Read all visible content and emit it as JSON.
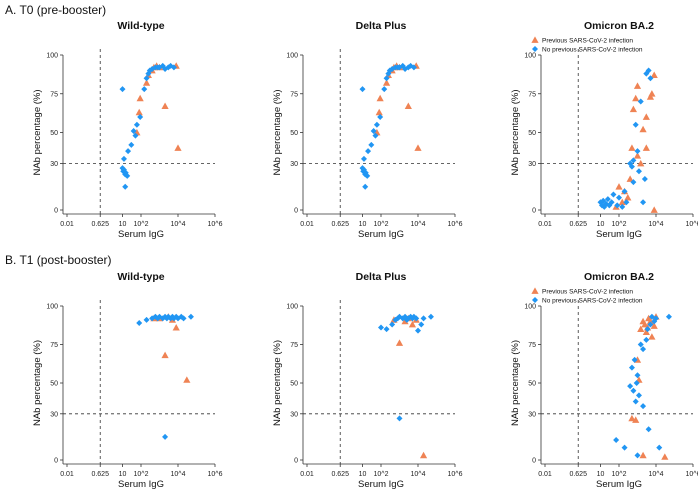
{
  "colors": {
    "previous": "#EF8354",
    "no_previous": "#2196F3"
  },
  "sections": [
    "A. T0 (pre-booster)",
    "B. T1 (post-booster)"
  ],
  "chart_data": [
    {
      "type": "scatter",
      "section": "A. T0 (pre-booster)",
      "title": "Wild-type",
      "xlabel": "Serum IgG",
      "ylabel": "NAb percentage (%)",
      "x_scale": "log10",
      "xlim": [
        0.01,
        1000000
      ],
      "ylim": [
        0,
        100
      ],
      "xticks": [
        "0.01",
        "0.625",
        "10",
        "10^2",
        "10^4",
        "10^6"
      ],
      "yticks": [
        "0",
        "30",
        "50",
        "75",
        "100"
      ],
      "ref_x": 0.625,
      "ref_y": 30,
      "legend": null,
      "series": [
        {
          "name": "Previous SARS-CoV-2 infection",
          "marker": "triangle",
          "points": [
            [
              60,
              50
            ],
            [
              80,
              63
            ],
            [
              90,
              72
            ],
            [
              200,
              82
            ],
            [
              250,
              87
            ],
            [
              400,
              90
            ],
            [
              500,
              92
            ],
            [
              700,
              93
            ],
            [
              1000,
              92
            ],
            [
              2000,
              67
            ],
            [
              8000,
              93
            ],
            [
              10000,
              40
            ]
          ]
        },
        {
          "name": "No previous SARS-CoV-2 infection",
          "marker": "diamond",
          "points": [
            [
              10,
              78
            ],
            [
              10,
              27
            ],
            [
              11,
              25
            ],
            [
              12,
              26
            ],
            [
              14,
              23
            ],
            [
              15,
              24
            ],
            [
              18,
              22
            ],
            [
              14,
              15
            ],
            [
              12,
              33
            ],
            [
              20,
              38
            ],
            [
              30,
              42
            ],
            [
              40,
              51
            ],
            [
              50,
              48
            ],
            [
              60,
              55
            ],
            [
              90,
              60
            ],
            [
              150,
              78
            ],
            [
              200,
              85
            ],
            [
              250,
              88
            ],
            [
              300,
              90
            ],
            [
              400,
              91
            ],
            [
              600,
              92
            ],
            [
              800,
              92
            ],
            [
              1000,
              92
            ],
            [
              1500,
              93
            ],
            [
              2000,
              91
            ],
            [
              3000,
              92
            ],
            [
              4000,
              93
            ],
            [
              6000,
              92
            ]
          ]
        }
      ]
    },
    {
      "type": "scatter",
      "section": "A. T0 (pre-booster)",
      "title": "Delta Plus",
      "xlabel": "Serum IgG",
      "ylabel": "NAb percentage (%)",
      "x_scale": "log10",
      "xlim": [
        0.01,
        1000000
      ],
      "ylim": [
        0,
        100
      ],
      "xticks": [
        "0.01",
        "0.625",
        "10",
        "10^2",
        "10^4",
        "10^6"
      ],
      "yticks": [
        "0",
        "30",
        "50",
        "75",
        "100"
      ],
      "ref_x": 0.625,
      "ref_y": 30,
      "legend": null,
      "series": [
        {
          "name": "Previous SARS-CoV-2 infection",
          "marker": "triangle",
          "points": [
            [
              60,
              50
            ],
            [
              80,
              63
            ],
            [
              90,
              72
            ],
            [
              200,
              82
            ],
            [
              250,
              87
            ],
            [
              400,
              90
            ],
            [
              500,
              92
            ],
            [
              700,
              93
            ],
            [
              1000,
              92
            ],
            [
              3000,
              67
            ],
            [
              8000,
              93
            ],
            [
              10000,
              40
            ]
          ]
        },
        {
          "name": "No previous SARS-CoV-2 infection",
          "marker": "diamond",
          "points": [
            [
              10,
              78
            ],
            [
              10,
              27
            ],
            [
              11,
              25
            ],
            [
              12,
              26
            ],
            [
              14,
              23
            ],
            [
              15,
              24
            ],
            [
              18,
              22
            ],
            [
              14,
              15
            ],
            [
              12,
              33
            ],
            [
              20,
              38
            ],
            [
              30,
              42
            ],
            [
              40,
              51
            ],
            [
              50,
              48
            ],
            [
              60,
              55
            ],
            [
              90,
              60
            ],
            [
              150,
              78
            ],
            [
              200,
              85
            ],
            [
              250,
              88
            ],
            [
              300,
              90
            ],
            [
              400,
              91
            ],
            [
              600,
              92
            ],
            [
              800,
              92
            ],
            [
              1000,
              92
            ],
            [
              1500,
              93
            ],
            [
              2000,
              91
            ],
            [
              3000,
              92
            ],
            [
              4000,
              93
            ],
            [
              6000,
              92
            ]
          ]
        }
      ]
    },
    {
      "type": "scatter",
      "section": "A. T0 (pre-booster)",
      "title": "Omicron BA.2",
      "xlabel": "Serum IgG",
      "ylabel": "NAb percentage (%)",
      "x_scale": "log10",
      "xlim": [
        0.01,
        1000000
      ],
      "ylim": [
        0,
        100
      ],
      "xticks": [
        "0.01",
        "0.625",
        "10",
        "10^2",
        "10^4",
        "10^6"
      ],
      "yticks": [
        "0",
        "30",
        "50",
        "75",
        "100"
      ],
      "ref_x": 0.625,
      "ref_y": 30,
      "legend": "top-right",
      "series": [
        {
          "name": "Previous SARS-CoV-2 infection",
          "marker": "triangle",
          "points": [
            [
              70,
              2
            ],
            [
              100,
              15
            ],
            [
              150,
              5
            ],
            [
              200,
              12
            ],
            [
              300,
              8
            ],
            [
              400,
              20
            ],
            [
              500,
              40
            ],
            [
              600,
              65
            ],
            [
              800,
              72
            ],
            [
              1000,
              80
            ],
            [
              1000,
              35
            ],
            [
              1500,
              30
            ],
            [
              2000,
              52
            ],
            [
              3000,
              60
            ],
            [
              5000,
              73
            ],
            [
              6000,
              75
            ],
            [
              8000,
              87
            ],
            [
              8000,
              0
            ],
            [
              3000,
              40
            ]
          ]
        },
        {
          "name": "No previous SARS-CoV-2 infection",
          "marker": "diamond",
          "points": [
            [
              10,
              5
            ],
            [
              12,
              3
            ],
            [
              14,
              6
            ],
            [
              16,
              2
            ],
            [
              20,
              4
            ],
            [
              25,
              7
            ],
            [
              30,
              3
            ],
            [
              40,
              5
            ],
            [
              50,
              10
            ],
            [
              80,
              3
            ],
            [
              100,
              8
            ],
            [
              150,
              2
            ],
            [
              200,
              12
            ],
            [
              250,
              5
            ],
            [
              400,
              30
            ],
            [
              500,
              28
            ],
            [
              600,
              32
            ],
            [
              800,
              55
            ],
            [
              1000,
              38
            ],
            [
              1500,
              70
            ],
            [
              2000,
              5
            ],
            [
              3000,
              88
            ],
            [
              4000,
              90
            ],
            [
              5000,
              85
            ],
            [
              600,
              18
            ],
            [
              1200,
              25
            ],
            [
              2500,
              20
            ]
          ]
        }
      ]
    },
    {
      "type": "scatter",
      "section": "B. T1 (post-booster)",
      "title": "Wild-type",
      "xlabel": "Serum IgG",
      "ylabel": "NAb percentage (%)",
      "x_scale": "log10",
      "xlim": [
        0.01,
        1000000
      ],
      "ylim": [
        0,
        100
      ],
      "xticks": [
        "0.01",
        "0.625",
        "10",
        "10^2",
        "10^4",
        "10^6"
      ],
      "yticks": [
        "0",
        "30",
        "50",
        "75",
        "100"
      ],
      "ref_x": 0.625,
      "ref_y": 30,
      "legend": null,
      "series": [
        {
          "name": "Previous SARS-CoV-2 infection",
          "marker": "triangle",
          "points": [
            [
              500,
              92
            ],
            [
              1000,
              92
            ],
            [
              2000,
              68
            ],
            [
              3000,
              93
            ],
            [
              5000,
              91
            ],
            [
              8000,
              86
            ],
            [
              30000,
              52
            ]
          ]
        },
        {
          "name": "No previous SARS-CoV-2 infection",
          "marker": "diamond",
          "points": [
            [
              80,
              89
            ],
            [
              200,
              91
            ],
            [
              400,
              92
            ],
            [
              600,
              93
            ],
            [
              800,
              92
            ],
            [
              1000,
              93
            ],
            [
              1500,
              92
            ],
            [
              2000,
              93
            ],
            [
              2500,
              92
            ],
            [
              3000,
              93
            ],
            [
              4000,
              92
            ],
            [
              5000,
              93
            ],
            [
              6000,
              92
            ],
            [
              8000,
              93
            ],
            [
              10000,
              92
            ],
            [
              15000,
              93
            ],
            [
              20000,
              92
            ],
            [
              50000,
              93
            ],
            [
              2000,
              15
            ]
          ]
        }
      ]
    },
    {
      "type": "scatter",
      "section": "B. T1 (post-booster)",
      "title": "Delta Plus",
      "xlabel": "Serum IgG",
      "ylabel": "NAb percentage (%)",
      "x_scale": "log10",
      "xlim": [
        0.01,
        1000000
      ],
      "ylim": [
        0,
        100
      ],
      "xticks": [
        "0.01",
        "0.625",
        "10",
        "10^2",
        "10^4",
        "10^6"
      ],
      "yticks": [
        "0",
        "30",
        "50",
        "75",
        "100"
      ],
      "ref_x": 0.625,
      "ref_y": 30,
      "legend": null,
      "series": [
        {
          "name": "Previous SARS-CoV-2 infection",
          "marker": "triangle",
          "points": [
            [
              500,
              91
            ],
            [
              1000,
              76
            ],
            [
              2000,
              90
            ],
            [
              3000,
              92
            ],
            [
              5000,
              88
            ],
            [
              8000,
              91
            ],
            [
              20000,
              3
            ]
          ]
        },
        {
          "name": "No previous SARS-CoV-2 infection",
          "marker": "diamond",
          "points": [
            [
              100,
              86
            ],
            [
              200,
              85
            ],
            [
              400,
              88
            ],
            [
              600,
              91
            ],
            [
              800,
              92
            ],
            [
              1000,
              93
            ],
            [
              1500,
              92
            ],
            [
              2000,
              93
            ],
            [
              2500,
              91
            ],
            [
              3000,
              92
            ],
            [
              4000,
              93
            ],
            [
              5000,
              92
            ],
            [
              6000,
              93
            ],
            [
              8000,
              92
            ],
            [
              10000,
              84
            ],
            [
              15000,
              88
            ],
            [
              20000,
              92
            ],
            [
              50000,
              93
            ],
            [
              1000,
              27
            ]
          ]
        }
      ]
    },
    {
      "type": "scatter",
      "section": "B. T1 (post-booster)",
      "title": "Omicron BA.2",
      "xlabel": "Serum IgG",
      "ylabel": "NAb percentage (%)",
      "x_scale": "log10",
      "xlim": [
        0.01,
        1000000
      ],
      "ylim": [
        0,
        100
      ],
      "xticks": [
        "0.01",
        "0.625",
        "10",
        "10^2",
        "10^4",
        "10^6"
      ],
      "yticks": [
        "0",
        "30",
        "50",
        "75",
        "100"
      ],
      "ref_x": 0.625,
      "ref_y": 30,
      "legend": "top-right",
      "series": [
        {
          "name": "Previous SARS-CoV-2 infection",
          "marker": "triangle",
          "points": [
            [
              500,
              27
            ],
            [
              800,
              26
            ],
            [
              1000,
              65
            ],
            [
              1500,
              85
            ],
            [
              2000,
              90
            ],
            [
              2500,
              88
            ],
            [
              3000,
              83
            ],
            [
              3500,
              86
            ],
            [
              4000,
              92
            ],
            [
              5000,
              90
            ],
            [
              6000,
              80
            ],
            [
              8000,
              87
            ],
            [
              10000,
              93
            ],
            [
              2000,
              3
            ],
            [
              30000,
              2
            ],
            [
              1200,
              52
            ]
          ]
        },
        {
          "name": "No previous SARS-CoV-2 infection",
          "marker": "diamond",
          "points": [
            [
              70,
              13
            ],
            [
              200,
              8
            ],
            [
              400,
              48
            ],
            [
              500,
              60
            ],
            [
              600,
              45
            ],
            [
              700,
              65
            ],
            [
              800,
              38
            ],
            [
              900,
              50
            ],
            [
              1000,
              55
            ],
            [
              1200,
              42
            ],
            [
              1500,
              75
            ],
            [
              2000,
              72
            ],
            [
              3000,
              78
            ],
            [
              3500,
              85
            ],
            [
              4000,
              20
            ],
            [
              5000,
              88
            ],
            [
              6000,
              93
            ],
            [
              8000,
              90
            ],
            [
              10000,
              92
            ],
            [
              15000,
              8
            ],
            [
              50000,
              93
            ],
            [
              2000,
              35
            ],
            [
              1000,
              3
            ]
          ]
        }
      ]
    }
  ]
}
